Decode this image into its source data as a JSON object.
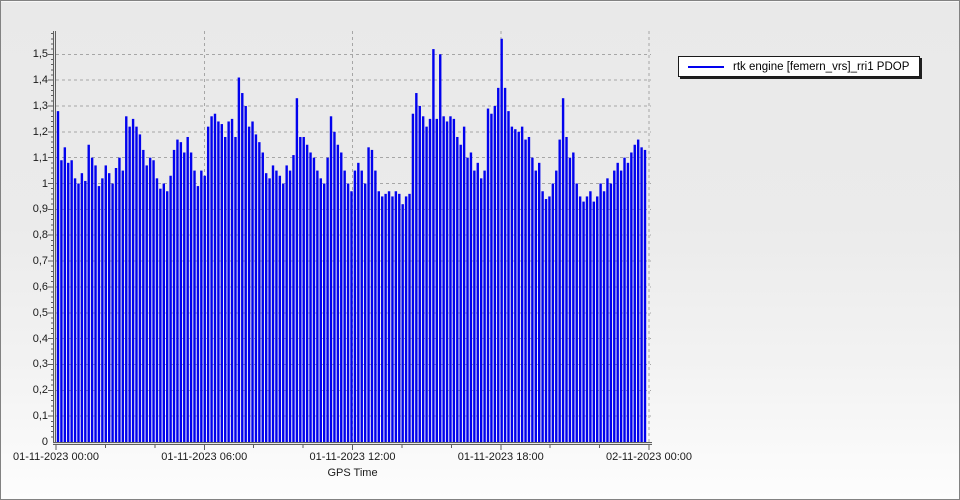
{
  "colors": {
    "series_blue": "#0202ee",
    "grid": "#a6a6a6",
    "axis": "#5f5f5f",
    "text": "#1a1a1a",
    "legend_bg": "#ffffff",
    "panel_bg_top": "#e9e9e9",
    "panel_bg_bottom": "#fdfdfd"
  },
  "legend": {
    "label": "rtk engine [femern_vrs]_rri1 PDOP"
  },
  "chart_data": {
    "type": "bar",
    "title": "",
    "xlabel": "GPS Time",
    "ylabel": "",
    "legend_position": "top-right",
    "grid": true,
    "ylim": [
      0,
      1.59
    ],
    "y_major_step": 0.1,
    "y_minor_step": 0.02,
    "x_range_hours": 24,
    "x_major_step_hours": 6,
    "x_minor_step_hours": 2,
    "y_tick_labels": [
      "0",
      "0,1",
      "0,2",
      "0,3",
      "0,4",
      "0,5",
      "0,6",
      "0,7",
      "0,8",
      "0,9",
      "1",
      "1,1",
      "1,2",
      "1,3",
      "1,4",
      "1,5"
    ],
    "x_tick_labels": [
      "01-11-2023 00:00",
      "01-11-2023 06:00",
      "01-11-2023 12:00",
      "01-11-2023 18:00",
      "02-11-2023 00:00"
    ],
    "series": [
      {
        "name": "rtk engine [femern_vrs]_rri1 PDOP",
        "color": "#0202ee",
        "values": [
          1.28,
          1.09,
          1.14,
          1.08,
          1.09,
          1.02,
          1.0,
          1.04,
          1.01,
          1.15,
          1.1,
          1.07,
          0.99,
          1.02,
          1.07,
          1.04,
          1.0,
          1.06,
          1.1,
          1.05,
          1.26,
          1.22,
          1.25,
          1.22,
          1.19,
          1.13,
          1.07,
          1.1,
          1.09,
          1.02,
          0.98,
          1.0,
          0.97,
          1.03,
          1.13,
          1.17,
          1.16,
          1.12,
          1.18,
          1.12,
          1.05,
          0.99,
          1.05,
          1.03,
          1.22,
          1.26,
          1.27,
          1.24,
          1.23,
          1.18,
          1.24,
          1.25,
          1.18,
          1.41,
          1.35,
          1.3,
          1.22,
          1.24,
          1.19,
          1.16,
          1.12,
          1.04,
          1.02,
          1.07,
          1.05,
          1.03,
          1.0,
          1.07,
          1.05,
          1.11,
          1.33,
          1.18,
          1.18,
          1.15,
          1.12,
          1.1,
          1.05,
          1.02,
          1.0,
          1.1,
          1.26,
          1.2,
          1.15,
          1.12,
          1.05,
          1.0,
          0.97,
          1.05,
          1.08,
          1.05,
          1.0,
          1.14,
          1.13,
          1.05,
          0.97,
          0.95,
          0.96,
          0.97,
          0.95,
          0.97,
          0.96,
          0.92,
          0.95,
          0.96,
          1.27,
          1.35,
          1.3,
          1.26,
          1.22,
          1.25,
          1.52,
          1.25,
          1.5,
          1.26,
          1.24,
          1.26,
          1.25,
          1.18,
          1.15,
          1.22,
          1.1,
          1.12,
          1.05,
          1.08,
          1.02,
          1.05,
          1.29,
          1.27,
          1.3,
          1.37,
          1.56,
          1.37,
          1.28,
          1.22,
          1.21,
          1.2,
          1.22,
          1.17,
          1.18,
          1.1,
          1.05,
          1.08,
          0.97,
          0.94,
          0.95,
          1.0,
          1.05,
          1.17,
          1.33,
          1.18,
          1.1,
          1.12,
          1.0,
          0.95,
          0.93,
          0.95,
          0.97,
          0.93,
          0.95,
          1.0,
          0.97,
          1.02,
          1.0,
          1.05,
          1.08,
          1.05,
          1.1,
          1.08,
          1.12,
          1.15,
          1.17,
          1.14,
          1.13
        ]
      }
    ]
  }
}
